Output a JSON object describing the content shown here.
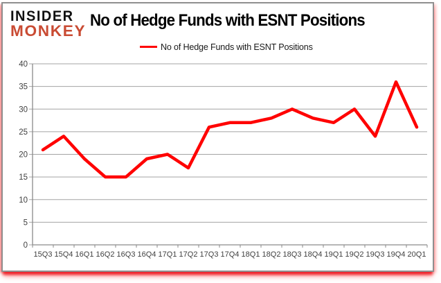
{
  "logo": {
    "line1": "INSIDER",
    "line2": "MONKEY"
  },
  "header": {
    "title": "No of Hedge Funds with ESNT Positions"
  },
  "legend": {
    "label": "No of Hedge Funds with ESNT Positions"
  },
  "colors": {
    "series_line": "#FF0000",
    "logo_black": "#111111",
    "logo_red": "#C94B33",
    "gridline": "#A3A3A3",
    "axis": "#8A8A8A",
    "tick_text": "#3F3F3F",
    "title_text": "#000000",
    "card_glow": "#ED1C24"
  },
  "chart_data": {
    "type": "line",
    "title": "No of Hedge Funds with ESNT Positions",
    "legend_entries": [
      "No of Hedge Funds with ESNT Positions"
    ],
    "legend_position": "top",
    "categories": [
      "15Q3",
      "15Q4",
      "16Q1",
      "16Q2",
      "16Q3",
      "16Q4",
      "17Q1",
      "17Q2",
      "17Q3",
      "17Q4",
      "18Q1",
      "18Q2",
      "18Q3",
      "18Q4",
      "19Q1",
      "19Q2",
      "19Q3",
      "19Q4",
      "20Q1"
    ],
    "series": [
      {
        "name": "No of Hedge Funds with ESNT Positions",
        "color": "#FF0000",
        "values": [
          21,
          24,
          19,
          15,
          15,
          19,
          20,
          17,
          26,
          27,
          27,
          28,
          30,
          28,
          27,
          30,
          24,
          36,
          26
        ]
      }
    ],
    "xlabel": "",
    "ylabel": "",
    "ylim": [
      0,
      40
    ],
    "ytick_step": 5,
    "yticks": [
      0,
      5,
      10,
      15,
      20,
      25,
      30,
      35,
      40
    ],
    "grid": "horizontal"
  }
}
